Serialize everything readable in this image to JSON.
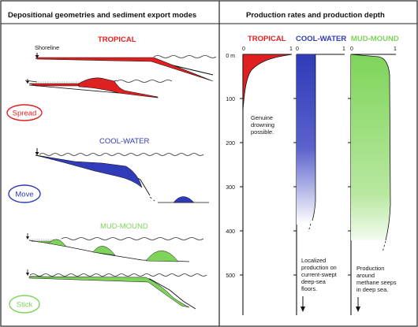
{
  "header": {
    "left_title": "Depositional geometries and sediment export modes",
    "right_title": "Production rates and production depth"
  },
  "left_panel": {
    "shoreline_label": "Shoreline",
    "sections": [
      {
        "title": "TROPICAL",
        "mode": "Spread"
      },
      {
        "title": "COOL-WATER",
        "mode": "Move"
      },
      {
        "title": "MUD-MOUND",
        "mode": "Stick"
      }
    ]
  },
  "right_panel": {
    "columns": [
      {
        "title": "TROPICAL",
        "tick_min": "0",
        "tick_max": "1",
        "note": [
          "Genuine",
          "drowning",
          "possible."
        ]
      },
      {
        "title": "COOL-WATER",
        "tick_min": "0",
        "tick_max": "1",
        "note": [
          "Localized",
          "production on",
          "current-swept",
          "deep-sea",
          "floors."
        ]
      },
      {
        "title": "MUD-MOUND",
        "tick_min": "0",
        "tick_max": "1",
        "note": [
          "Production",
          "around",
          "methane seeps",
          "in deep sea."
        ]
      }
    ],
    "depth_axis": {
      "ticks": [
        "0 m",
        "100",
        "200",
        "300",
        "400",
        "500"
      ]
    }
  },
  "colors": {
    "tropical": "#e02020",
    "cool_water": "#2f3bb8",
    "mud_mound": "#7ed45a",
    "frame": "#222222"
  }
}
